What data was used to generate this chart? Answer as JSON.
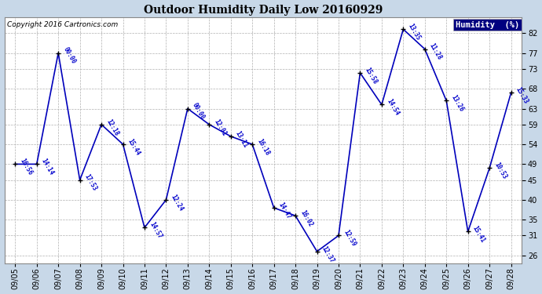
{
  "title": "Outdoor Humidity Daily Low 20160929",
  "copyright": "Copyright 2016 Cartronics.com",
  "legend_label": "Humidity  (%)",
  "background_color": "#c8d8e8",
  "plot_bg_color": "#ffffff",
  "line_color": "#0000bb",
  "marker_color": "#000000",
  "text_color": "#0000cc",
  "title_color": "#000000",
  "legend_bg": "#000080",
  "legend_fg": "#ffffff",
  "ylim": [
    24,
    86
  ],
  "yticks": [
    26,
    31,
    35,
    40,
    45,
    49,
    54,
    59,
    63,
    68,
    73,
    77,
    82
  ],
  "dates": [
    "09/05",
    "09/06",
    "09/07",
    "09/08",
    "09/09",
    "09/10",
    "09/11",
    "09/12",
    "09/13",
    "09/14",
    "09/15",
    "09/16",
    "09/17",
    "09/18",
    "09/19",
    "09/20",
    "09/21",
    "09/22",
    "09/23",
    "09/24",
    "09/25",
    "09/26",
    "09/27",
    "09/28"
  ],
  "values": [
    49,
    49,
    77,
    45,
    59,
    54,
    33,
    40,
    63,
    59,
    56,
    54,
    38,
    36,
    27,
    31,
    72,
    64,
    83,
    78,
    65,
    32,
    48,
    67
  ],
  "time_labels": [
    "16:56",
    "14:14",
    "00:00",
    "17:53",
    "12:18",
    "15:44",
    "14:57",
    "12:24",
    "00:00",
    "12:01",
    "13:11",
    "16:18",
    "14:47",
    "16:02",
    "12:37",
    "12:59",
    "15:58",
    "14:54",
    "13:35",
    "11:28",
    "13:26",
    "15:41",
    "10:53",
    "15:33"
  ]
}
